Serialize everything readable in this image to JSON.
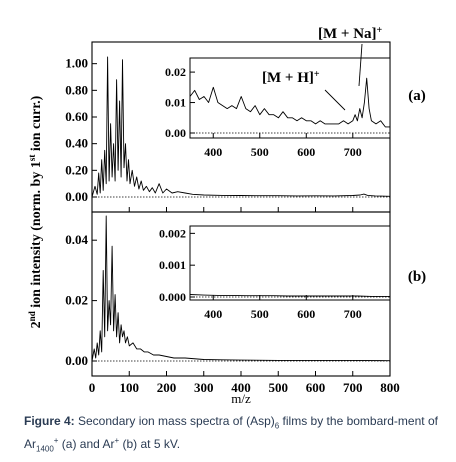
{
  "figure": {
    "ylabel": {
      "ord": "2",
      "ord_sup": "nd",
      "part1": " ion intensity (norm. by 1",
      "sup": "st",
      "part2": " ion curr.)"
    },
    "xlabel": "m/z",
    "labels": {
      "panel_a": "(a)",
      "panel_b": "(b)",
      "ann_na": "[M + Na]",
      "ann_na_sup": "+",
      "ann_h": "[M + H]",
      "ann_h_sup": "+"
    },
    "caption": {
      "prefix": "Figure 4:",
      "text1": " Secondary ion mass spectra of (Asp)",
      "sub1": "6",
      "text2": " films by the bombard-ment of Ar",
      "sub2": "1400",
      "sup2": "+",
      "text3": " (a) and Ar",
      "sup3": "+",
      "text4": " (b) at 5 kV."
    }
  },
  "chart_data": [
    {
      "type": "line",
      "panel": "(a)",
      "xlabel": "m/z",
      "ylabel": "2nd ion intensity (norm. by 1st ion curr.)",
      "xlim": [
        0,
        800
      ],
      "ylim": [
        0,
        1.05
      ],
      "yticks": [
        "0.00",
        "0.20",
        "0.40",
        "0.60",
        "0.80",
        "1.00"
      ],
      "xticks": [
        "0",
        "100",
        "200",
        "300",
        "400",
        "500",
        "600",
        "700",
        "800"
      ],
      "series": [
        {
          "x": [
            0,
            8,
            14,
            18,
            22,
            26,
            30,
            34,
            38,
            42,
            46,
            50,
            54,
            58,
            62,
            66,
            70,
            74,
            78,
            82,
            86,
            90,
            94,
            98,
            102,
            108,
            114,
            120,
            126,
            132,
            138,
            146,
            154,
            162,
            170,
            180,
            190,
            200,
            215,
            230,
            250,
            270,
            300,
            350,
            400,
            450,
            500,
            550,
            600,
            650,
            700,
            720,
            730,
            740,
            760,
            800
          ],
          "y": [
            0.0,
            0.08,
            0.02,
            0.18,
            0.03,
            0.28,
            0.05,
            0.35,
            0.1,
            1.05,
            0.12,
            0.55,
            0.15,
            0.4,
            0.12,
            0.88,
            0.2,
            0.72,
            0.15,
            1.03,
            0.22,
            0.4,
            0.12,
            0.28,
            0.1,
            0.2,
            0.08,
            0.15,
            0.06,
            0.12,
            0.05,
            0.08,
            0.04,
            0.07,
            0.03,
            0.1,
            0.03,
            0.06,
            0.03,
            0.04,
            0.03,
            0.02,
            0.015,
            0.012,
            0.011,
            0.01,
            0.01,
            0.008,
            0.009,
            0.008,
            0.011,
            0.015,
            0.022,
            0.012,
            0.008,
            0.005
          ]
        }
      ]
    },
    {
      "type": "line",
      "panel": "(a) inset",
      "xlim": [
        350,
        780
      ],
      "ylim": [
        0,
        0.022
      ],
      "yticks": [
        "0.00",
        "0.01",
        "0.02"
      ],
      "xticks": [
        "400",
        "500",
        "600",
        "700"
      ],
      "series": [
        {
          "x": [
            350,
            360,
            370,
            380,
            390,
            400,
            410,
            420,
            430,
            440,
            450,
            460,
            470,
            480,
            490,
            500,
            510,
            520,
            530,
            540,
            550,
            560,
            570,
            580,
            590,
            600,
            610,
            620,
            630,
            640,
            650,
            660,
            670,
            680,
            690,
            700,
            705,
            710,
            715,
            720,
            725,
            730,
            735,
            740,
            750,
            760,
            770,
            780
          ],
          "y": [
            0.012,
            0.014,
            0.011,
            0.012,
            0.01,
            0.015,
            0.01,
            0.009,
            0.008,
            0.009,
            0.008,
            0.012,
            0.008,
            0.007,
            0.009,
            0.006,
            0.008,
            0.006,
            0.006,
            0.005,
            0.007,
            0.005,
            0.005,
            0.004,
            0.005,
            0.004,
            0.004,
            0.003,
            0.004,
            0.003,
            0.003,
            0.003,
            0.003,
            0.004,
            0.003,
            0.004,
            0.006,
            0.004,
            0.008,
            0.005,
            0.01,
            0.018,
            0.008,
            0.004,
            0.003,
            0.004,
            0.002,
            0.002
          ]
        }
      ]
    },
    {
      "type": "line",
      "panel": "(b)",
      "xlabel": "m/z",
      "xlim": [
        0,
        800
      ],
      "ylim": [
        0,
        0.05
      ],
      "yticks": [
        "0.00",
        "0.02",
        "0.04"
      ],
      "xticks": [
        "0",
        "100",
        "200",
        "300",
        "400",
        "500",
        "600",
        "700",
        "800"
      ],
      "series": [
        {
          "x": [
            0,
            6,
            10,
            14,
            18,
            22,
            26,
            30,
            34,
            38,
            42,
            46,
            50,
            54,
            58,
            62,
            66,
            70,
            74,
            78,
            82,
            86,
            90,
            95,
            100,
            110,
            120,
            130,
            140,
            150,
            165,
            180,
            200,
            220,
            250,
            300,
            350,
            400,
            500,
            600,
            700,
            800
          ],
          "y": [
            0.0,
            0.004,
            0.001,
            0.006,
            0.002,
            0.01,
            0.003,
            0.03,
            0.008,
            0.048,
            0.01,
            0.02,
            0.012,
            0.038,
            0.01,
            0.022,
            0.008,
            0.016,
            0.006,
            0.012,
            0.008,
            0.01,
            0.006,
            0.008,
            0.005,
            0.006,
            0.004,
            0.004,
            0.003,
            0.003,
            0.002,
            0.002,
            0.0015,
            0.001,
            0.001,
            0.0005,
            0.0004,
            0.0003,
            0.0002,
            0.0002,
            0.0002,
            0.0001
          ]
        }
      ]
    },
    {
      "type": "line",
      "panel": "(b) inset",
      "xlim": [
        350,
        780
      ],
      "ylim": [
        0,
        0.0022
      ],
      "yticks": [
        "0.000",
        "0.001",
        "0.002"
      ],
      "xticks": [
        "400",
        "500",
        "600",
        "700"
      ],
      "series": [
        {
          "x": [
            350,
            380,
            410,
            440,
            470,
            500,
            530,
            560,
            590,
            620,
            650,
            680,
            710,
            740,
            780
          ],
          "y": [
            8e-05,
            6e-05,
            5e-05,
            5e-05,
            4e-05,
            4e-05,
            4e-05,
            3e-05,
            3e-05,
            3e-05,
            3e-05,
            3e-05,
            3e-05,
            2e-05,
            2e-05
          ]
        }
      ]
    }
  ]
}
